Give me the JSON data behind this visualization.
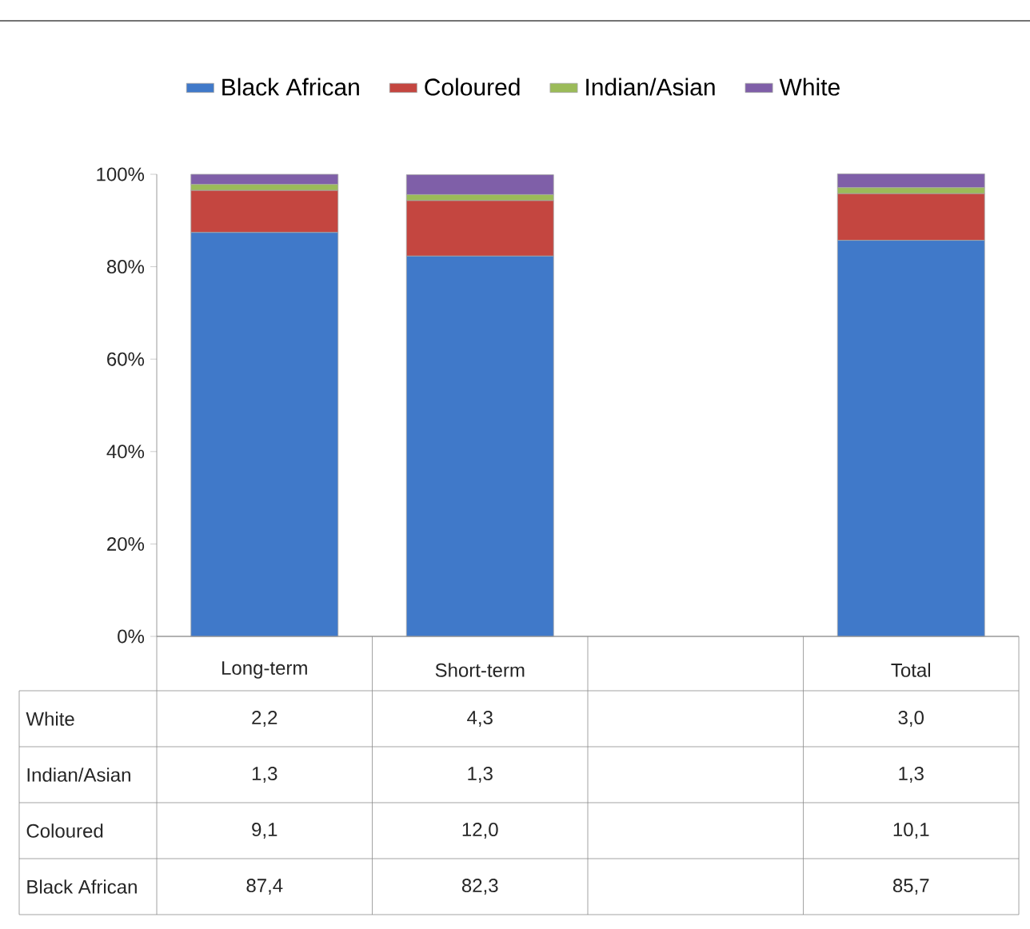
{
  "chart_data": {
    "type": "bar",
    "stacked": true,
    "categories": [
      "Long-term",
      "Short-term",
      null,
      "Total"
    ],
    "series": [
      {
        "name": "Black African",
        "color": "#4079c9",
        "values": [
          87.4,
          82.3,
          null,
          85.7
        ],
        "value_labels": [
          "87,4",
          "82,3",
          null,
          "85,7"
        ]
      },
      {
        "name": "Coloured",
        "color": "#c44640",
        "values": [
          9.1,
          12.0,
          null,
          10.1
        ],
        "value_labels": [
          "9,1",
          "12,0",
          null,
          "10,1"
        ]
      },
      {
        "name": "Indian/Asian",
        "color": "#9bbb59",
        "values": [
          1.3,
          1.3,
          null,
          1.3
        ],
        "value_labels": [
          "1,3",
          "1,3",
          null,
          "1,3"
        ]
      },
      {
        "name": "White",
        "color": "#7f5fa8",
        "values": [
          2.2,
          4.3,
          null,
          3.0
        ],
        "value_labels": [
          "2,2",
          "4,3",
          null,
          "3,0"
        ]
      }
    ],
    "ylim": [
      0,
      100
    ],
    "yticks": [
      {
        "value": 0,
        "label": "0%"
      },
      {
        "value": 20,
        "label": "20%"
      },
      {
        "value": 40,
        "label": "40%"
      },
      {
        "value": 60,
        "label": "60%"
      },
      {
        "value": 80,
        "label": "80%"
      },
      {
        "value": 100,
        "label": "100%"
      }
    ],
    "legend": "top"
  }
}
